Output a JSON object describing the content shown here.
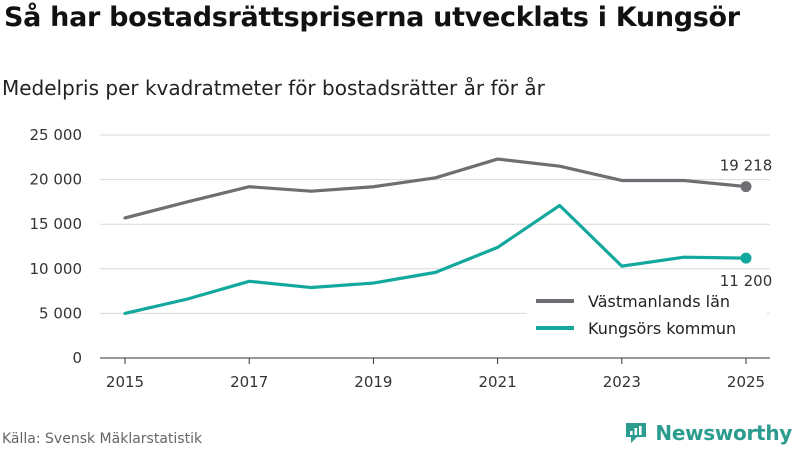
{
  "title": "Så har bostadsrättspriserna utvecklats i Kungsör",
  "subtitle": "Medelpris per kvadratmeter för bostadsrätter år för år",
  "source": "Källa: Svensk Mäklarstatistik",
  "brand": "Newsworthy",
  "chart_data": {
    "type": "line",
    "title": "Så har bostadsrättspriserna utvecklats i Kungsör",
    "subtitle": "Medelpris per kvadratmeter för bostadsrätter år för år",
    "xlabel": "",
    "ylabel": "",
    "x": [
      2015,
      2016,
      2017,
      2018,
      2019,
      2020,
      2021,
      2022,
      2023,
      2024,
      2025
    ],
    "x_ticks": [
      "2015",
      "2017",
      "2019",
      "2021",
      "2023",
      "2025"
    ],
    "x_tick_values": [
      2015,
      2017,
      2019,
      2021,
      2023,
      2025
    ],
    "y_ticks": [
      "0",
      "5 000",
      "10 000",
      "15 000",
      "20 000",
      "25 000"
    ],
    "y_tick_values": [
      0,
      5000,
      10000,
      15000,
      20000,
      25000
    ],
    "ylim": [
      0,
      25000
    ],
    "xlim": [
      2014.8,
      2025.2
    ],
    "grid": "horizontal",
    "legend_position": "bottom-right",
    "series": [
      {
        "name": "Västmanlands län",
        "color": "#6e6e73",
        "values": [
          15700,
          17500,
          19200,
          18700,
          19200,
          20200,
          22300,
          21500,
          19900,
          19900,
          19218
        ],
        "end_label": "19 218"
      },
      {
        "name": "Kungsörs kommun",
        "color": "#13a89e",
        "values": [
          5000,
          6600,
          8600,
          7900,
          8400,
          9600,
          12400,
          17100,
          10300,
          11300,
          11200
        ],
        "end_label": "11 200"
      }
    ]
  }
}
